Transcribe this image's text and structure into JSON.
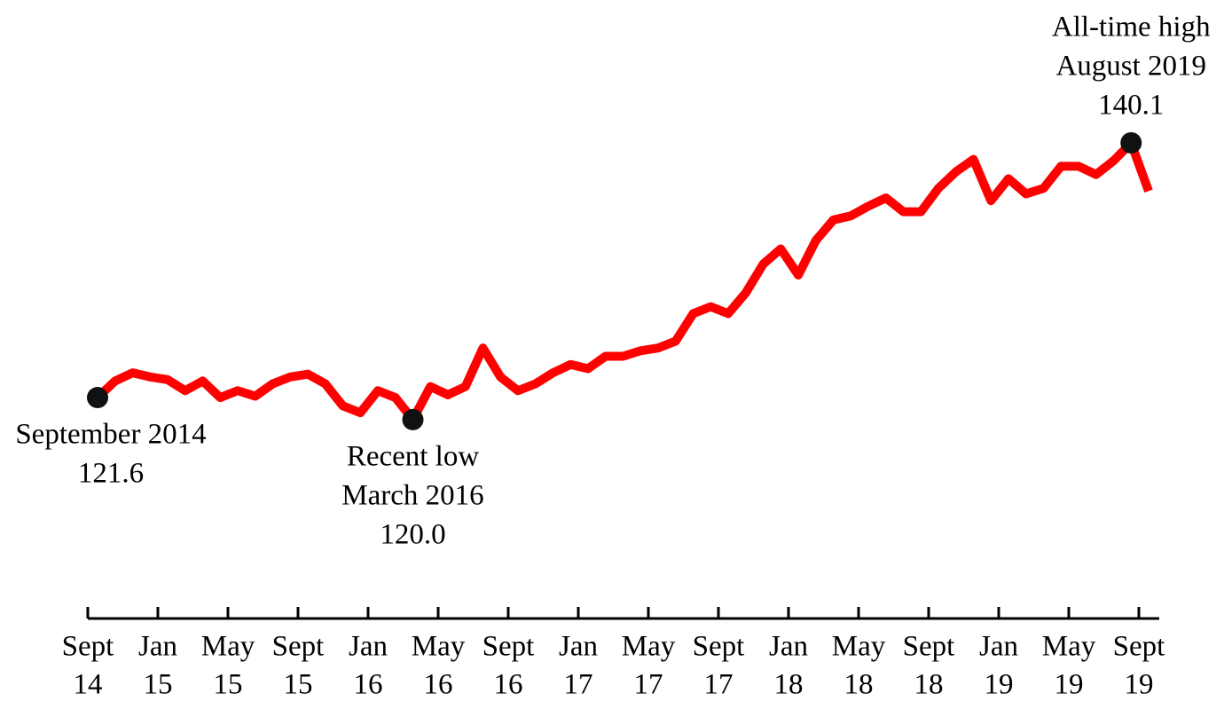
{
  "chart_data": {
    "type": "line",
    "x": [
      "2014-09",
      "2014-10",
      "2014-11",
      "2014-12",
      "2015-01",
      "2015-02",
      "2015-03",
      "2015-04",
      "2015-05",
      "2015-06",
      "2015-07",
      "2015-08",
      "2015-09",
      "2015-10",
      "2015-11",
      "2015-12",
      "2016-01",
      "2016-02",
      "2016-03",
      "2016-04",
      "2016-05",
      "2016-06",
      "2016-07",
      "2016-08",
      "2016-09",
      "2016-10",
      "2016-11",
      "2016-12",
      "2017-01",
      "2017-02",
      "2017-03",
      "2017-04",
      "2017-05",
      "2017-06",
      "2017-07",
      "2017-08",
      "2017-09",
      "2017-10",
      "2017-11",
      "2017-12",
      "2018-01",
      "2018-02",
      "2018-03",
      "2018-04",
      "2018-05",
      "2018-06",
      "2018-07",
      "2018-08",
      "2018-09",
      "2018-10",
      "2018-11",
      "2018-12",
      "2019-01",
      "2019-02",
      "2019-03",
      "2019-04",
      "2019-05",
      "2019-06",
      "2019-07",
      "2019-08",
      "2019-09"
    ],
    "series": [
      {
        "color": "#ff0000",
        "values": [
          121.6,
          122.8,
          123.4,
          123.1,
          122.9,
          122.1,
          122.8,
          121.6,
          122.1,
          121.7,
          122.6,
          123.1,
          123.3,
          122.6,
          121.0,
          120.5,
          122.1,
          121.6,
          120.0,
          122.4,
          121.8,
          122.4,
          125.2,
          123.1,
          122.1,
          122.6,
          123.4,
          124.0,
          123.7,
          124.6,
          124.6,
          125.0,
          125.2,
          125.7,
          127.7,
          128.2,
          127.7,
          129.2,
          131.3,
          132.4,
          130.5,
          133.0,
          134.5,
          134.8,
          135.5,
          136.1,
          135.1,
          135.1,
          136.8,
          138.0,
          138.9,
          135.9,
          137.5,
          136.4,
          136.8,
          138.4,
          138.4,
          137.8,
          138.8,
          140.1,
          136.6
        ]
      }
    ],
    "ylim": [
      110,
      145
    ],
    "xticks": [
      {
        "value": "2014-09",
        "label": [
          "Sept",
          "14"
        ]
      },
      {
        "value": "2015-01",
        "label": [
          "Jan",
          "15"
        ]
      },
      {
        "value": "2015-05",
        "label": [
          "May",
          "15"
        ]
      },
      {
        "value": "2015-09",
        "label": [
          "Sept",
          "15"
        ]
      },
      {
        "value": "2016-01",
        "label": [
          "Jan",
          "16"
        ]
      },
      {
        "value": "2016-05",
        "label": [
          "May",
          "16"
        ]
      },
      {
        "value": "2016-09",
        "label": [
          "Sept",
          "16"
        ]
      },
      {
        "value": "2017-01",
        "label": [
          "Jan",
          "17"
        ]
      },
      {
        "value": "2017-05",
        "label": [
          "May",
          "17"
        ]
      },
      {
        "value": "2017-09",
        "label": [
          "Sept",
          "17"
        ]
      },
      {
        "value": "2018-01",
        "label": [
          "Jan",
          "18"
        ]
      },
      {
        "value": "2018-05",
        "label": [
          "May",
          "18"
        ]
      },
      {
        "value": "2018-09",
        "label": [
          "Sept",
          "18"
        ]
      },
      {
        "value": "2019-01",
        "label": [
          "Jan",
          "19"
        ]
      },
      {
        "value": "2019-05",
        "label": [
          "May",
          "19"
        ]
      },
      {
        "value": "2019-09",
        "label": [
          "Sept",
          "19"
        ]
      }
    ],
    "marker_color": "#111111",
    "annotations": [
      {
        "x": "2014-09",
        "lines": [
          "September 2014",
          "121.6"
        ],
        "position": "below"
      },
      {
        "x": "2016-03",
        "lines": [
          "Recent low",
          "March 2016",
          "120.0"
        ],
        "position": "below"
      },
      {
        "x": "2019-08",
        "lines": [
          "All-time high",
          "August 2019",
          "140.1"
        ],
        "position": "above"
      }
    ]
  }
}
